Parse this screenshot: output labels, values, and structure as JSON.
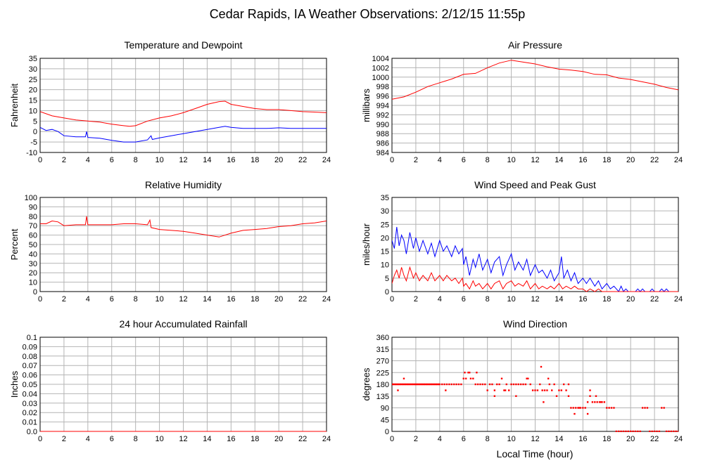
{
  "page": {
    "title": "Cedar Rapids, IA Weather Observations: 2/12/15 11:55p",
    "footer_xlabel": "Local Time (hour)"
  },
  "chart_data": [
    {
      "id": "temp",
      "type": "line",
      "title": "Temperature and Dewpoint",
      "xlabel": "",
      "ylabel": "Fahrenheit",
      "xlim": [
        0,
        24
      ],
      "ylim": [
        -10,
        35
      ],
      "xticks": [
        0,
        2,
        4,
        6,
        8,
        10,
        12,
        14,
        16,
        18,
        20,
        22,
        24
      ],
      "yticks": [
        -10,
        -5,
        0,
        5,
        10,
        15,
        20,
        25,
        30,
        35
      ],
      "grid": true,
      "series": [
        {
          "color": "#ff0000",
          "x": [
            0,
            1,
            2,
            3,
            4,
            5,
            6,
            7,
            7.5,
            8,
            9,
            10,
            11,
            12,
            13,
            14,
            15,
            15.5,
            16,
            17,
            18,
            19,
            20,
            21,
            22,
            23,
            24
          ],
          "values": [
            9.5,
            7.5,
            6.5,
            5.5,
            5,
            4.5,
            3.5,
            2.8,
            2.5,
            2.8,
            5,
            6.5,
            7.5,
            9,
            11,
            13,
            14.3,
            14.5,
            13,
            12,
            11,
            10.5,
            10.5,
            10,
            9.5,
            9.3,
            9
          ]
        },
        {
          "color": "#0000ff",
          "x": [
            0,
            0.5,
            1,
            1.5,
            2,
            3,
            3.8,
            3.9,
            4,
            5,
            6,
            7,
            8,
            9,
            9.3,
            9.4,
            10,
            11,
            12,
            13,
            14,
            15,
            15.5,
            16,
            17,
            18,
            19,
            20,
            21,
            22,
            23,
            24
          ],
          "values": [
            2,
            0.5,
            1,
            0,
            -2,
            -2.5,
            -2.5,
            0,
            -2.8,
            -3.2,
            -4.2,
            -5,
            -5,
            -4,
            -2,
            -3.8,
            -3,
            -2,
            -1,
            0,
            1,
            2,
            2.5,
            2,
            1.5,
            1.5,
            1.5,
            1.8,
            1.5,
            1.5,
            1.5,
            1.5
          ]
        }
      ]
    },
    {
      "id": "pressure",
      "type": "line",
      "title": "Air Pressure",
      "xlabel": "",
      "ylabel": "millibars",
      "xlim": [
        0,
        24
      ],
      "ylim": [
        984,
        1004
      ],
      "xticks": [
        0,
        2,
        4,
        6,
        8,
        10,
        12,
        14,
        16,
        18,
        20,
        22,
        24
      ],
      "yticks": [
        984,
        986,
        988,
        990,
        992,
        994,
        996,
        998,
        1000,
        1002,
        1004
      ],
      "grid": true,
      "series": [
        {
          "color": "#ff0000",
          "x": [
            0,
            1,
            2,
            3,
            4,
            5,
            6,
            7,
            8,
            9,
            10,
            11,
            12,
            13,
            14,
            15,
            16,
            17,
            18,
            19,
            20,
            21,
            22,
            23,
            24
          ],
          "values": [
            995.3,
            995.8,
            996.8,
            998,
            998.8,
            999.6,
            1000.6,
            1000.8,
            1002,
            1003,
            1003.6,
            1003.2,
            1002.8,
            1002.2,
            1001.7,
            1001.5,
            1001.2,
            1000.6,
            1000.5,
            999.8,
            999.5,
            999,
            998.5,
            997.8,
            997.3
          ]
        }
      ]
    },
    {
      "id": "humidity",
      "type": "line",
      "title": "Relative Humidity",
      "xlabel": "",
      "ylabel": "Percent",
      "xlim": [
        0,
        24
      ],
      "ylim": [
        0,
        100
      ],
      "xticks": [
        0,
        2,
        4,
        6,
        8,
        10,
        12,
        14,
        16,
        18,
        20,
        22,
        24
      ],
      "yticks": [
        0,
        10,
        20,
        30,
        40,
        50,
        60,
        70,
        80,
        90,
        100
      ],
      "grid": true,
      "series": [
        {
          "color": "#ff0000",
          "x": [
            0,
            0.5,
            1,
            1.5,
            2,
            3,
            3.8,
            3.9,
            4,
            5,
            6,
            7,
            8,
            9,
            9.2,
            9.3,
            10,
            11,
            12,
            13,
            14,
            15,
            16,
            17,
            18,
            19,
            20,
            21,
            22,
            23,
            24
          ],
          "values": [
            72,
            72,
            75,
            74,
            70,
            71,
            71,
            80,
            71,
            71,
            71,
            72,
            72,
            71,
            76,
            68,
            66,
            65,
            64,
            62,
            60,
            58,
            62,
            65,
            66,
            67,
            69,
            70,
            72,
            73,
            75
          ]
        }
      ]
    },
    {
      "id": "wind",
      "type": "line",
      "title": "Wind Speed and Peak Gust",
      "xlabel": "",
      "ylabel": "miles/hour",
      "xlim": [
        0,
        24
      ],
      "ylim": [
        0,
        35
      ],
      "xticks": [
        0,
        2,
        4,
        6,
        8,
        10,
        12,
        14,
        16,
        18,
        20,
        22,
        24
      ],
      "yticks": [
        0,
        5,
        10,
        15,
        20,
        25,
        30,
        35
      ],
      "grid": true,
      "series": [
        {
          "color": "#0000ff",
          "x": [
            0,
            0.2,
            0.4,
            0.6,
            0.8,
            1,
            1.2,
            1.5,
            1.8,
            2,
            2.3,
            2.6,
            3,
            3.3,
            3.6,
            4,
            4.3,
            4.6,
            5,
            5.3,
            5.6,
            5.9,
            6,
            6.2,
            6.5,
            6.8,
            7,
            7.3,
            7.6,
            8,
            8.3,
            8.6,
            9,
            9.3,
            9.6,
            10,
            10.3,
            10.6,
            11,
            11.3,
            11.6,
            12,
            12.3,
            12.6,
            13,
            13.3,
            13.6,
            14,
            14.2,
            14.4,
            14.7,
            15,
            15.3,
            15.6,
            16,
            16.3,
            16.6,
            17,
            17.3,
            17.6,
            18,
            18.3,
            18.6,
            19,
            19.2,
            19.4,
            19.6,
            19.8,
            20,
            20.2,
            20.4,
            20.6,
            20.8,
            21,
            21.2,
            21.4,
            21.6,
            21.8,
            22,
            22.2,
            22.4,
            22.6,
            22.8,
            23,
            23.2,
            23.5,
            24
          ],
          "values": [
            19,
            16,
            24,
            17,
            21,
            19,
            14,
            22,
            16,
            20,
            15,
            19,
            14,
            18,
            13,
            19,
            15,
            17,
            13,
            17,
            14,
            16,
            10,
            13,
            6,
            12,
            9,
            14,
            8,
            12,
            7,
            11,
            13,
            6,
            10,
            14,
            8,
            11,
            8,
            12,
            6,
            10,
            7,
            8,
            5,
            8,
            4,
            7,
            13,
            5,
            8,
            4,
            7,
            3,
            5,
            3,
            5,
            2,
            4,
            1,
            3,
            1,
            2,
            0,
            2,
            0,
            1,
            0,
            0,
            0,
            0,
            1,
            0,
            1,
            0,
            0,
            0,
            1,
            0,
            0,
            0,
            1,
            0,
            1,
            0,
            0,
            0
          ]
        },
        {
          "color": "#ff0000",
          "x": [
            0,
            0.2,
            0.4,
            0.6,
            0.8,
            1,
            1.2,
            1.5,
            1.8,
            2,
            2.3,
            2.6,
            3,
            3.3,
            3.6,
            4,
            4.3,
            4.6,
            5,
            5.3,
            5.6,
            5.9,
            6,
            6.2,
            6.5,
            6.8,
            7,
            7.3,
            7.6,
            8,
            8.3,
            8.6,
            9,
            9.3,
            9.6,
            10,
            10.3,
            10.6,
            11,
            11.3,
            11.6,
            12,
            12.3,
            12.6,
            13,
            13.3,
            13.6,
            14,
            14.3,
            14.6,
            15,
            15.3,
            15.6,
            16,
            16.3,
            16.6,
            17,
            17.3,
            17.6,
            18,
            24
          ],
          "values": [
            3,
            6,
            8,
            5,
            9,
            6,
            4,
            9,
            5,
            7,
            4,
            6,
            4,
            7,
            4,
            6,
            4,
            6,
            4,
            5,
            3,
            5,
            2,
            3,
            1,
            4,
            2,
            3,
            1,
            3,
            1,
            3,
            4,
            1,
            3,
            4,
            2,
            3,
            2,
            4,
            1,
            3,
            1,
            2,
            1,
            2,
            1,
            3,
            1,
            2,
            1,
            2,
            1,
            1,
            0,
            1,
            0,
            1,
            0,
            0,
            0
          ]
        }
      ]
    },
    {
      "id": "rain",
      "type": "line",
      "title": "24 hour Accumulated Rainfall",
      "xlabel": "",
      "ylabel": "Inches",
      "xlim": [
        0,
        24
      ],
      "ylim": [
        0,
        0.1
      ],
      "xticks": [
        0,
        2,
        4,
        6,
        8,
        10,
        12,
        14,
        16,
        18,
        20,
        22,
        24
      ],
      "yticks": [
        0,
        0.01,
        0.02,
        0.03,
        0.04,
        0.05,
        0.06,
        0.07,
        0.08,
        0.09,
        0.1
      ],
      "ytick_labels": [
        "0.0",
        "0.01",
        "0.02",
        "0.03",
        "0.04",
        "0.05",
        "0.06",
        "0.07",
        "0.08",
        "0.09",
        "0.1"
      ],
      "grid": true,
      "series": [
        {
          "color": "#ff0000",
          "x": [
            0,
            24
          ],
          "values": [
            0,
            0
          ]
        }
      ]
    },
    {
      "id": "direction",
      "type": "scatter",
      "title": "Wind Direction",
      "xlabel": "",
      "ylabel": "degrees",
      "xlim": [
        0,
        24
      ],
      "ylim": [
        0,
        360
      ],
      "xticks": [
        0,
        2,
        4,
        6,
        8,
        10,
        12,
        14,
        16,
        18,
        20,
        22,
        24
      ],
      "yticks": [
        0,
        45,
        90,
        135,
        180,
        225,
        270,
        315,
        360
      ],
      "grid": true,
      "series": [
        {
          "color": "#ff0000",
          "x": [
            0,
            0.1,
            0.2,
            0.3,
            0.4,
            0.5,
            0.6,
            0.7,
            0.8,
            0.9,
            1,
            1.1,
            1.2,
            1.3,
            1.4,
            1.5,
            1.6,
            1.7,
            1.8,
            1.9,
            2,
            2.1,
            2.2,
            2.3,
            2.4,
            2.5,
            2.6,
            2.7,
            2.8,
            2.9,
            3,
            3.1,
            3.2,
            3.3,
            3.4,
            3.5,
            3.6,
            3.7,
            3.8,
            3.9,
            4,
            4.2,
            4.4,
            4.6,
            4.8,
            5,
            5.2,
            5.4,
            5.6,
            5.8,
            6,
            6.2,
            6.4,
            6.6,
            6.8,
            7,
            7.2,
            7.4,
            7.6,
            7.8,
            8,
            8.2,
            8.4,
            8.6,
            8.8,
            9,
            9.2,
            9.4,
            9.6,
            9.8,
            10,
            10.2,
            10.4,
            10.6,
            10.8,
            11,
            11.2,
            11.4,
            11.6,
            11.8,
            12,
            12.2,
            12.4,
            12.6,
            12.8,
            13,
            13.2,
            13.4,
            13.6,
            13.8,
            14,
            14.2,
            14.4,
            14.6,
            14.8,
            15,
            15.2,
            15.4,
            15.6,
            15.8,
            16,
            16.2,
            16.4,
            16.6,
            16.8,
            17,
            17.2,
            17.4,
            17.6,
            17.8,
            18,
            18.2,
            18.4,
            18.6,
            18.8,
            19,
            19.2,
            19.4,
            19.6,
            19.8,
            20,
            20.2,
            20.4,
            20.6,
            20.8,
            21,
            21.2,
            21.4,
            21.6,
            21.8,
            22,
            22.2,
            22.4,
            22.6,
            22.8,
            23,
            23.2,
            23.4,
            23.6,
            23.8,
            24,
            0.5,
            1.0,
            4.5,
            6.1,
            6.5,
            7.1,
            8.6,
            9.5,
            10.4,
            11.3,
            12.5,
            12.7,
            13.1,
            14.8,
            15.3,
            15.7,
            16.4,
            16.6,
            17.1,
            17.5
          ],
          "values": [
            180,
            180,
            180,
            180,
            180,
            180,
            180,
            180,
            180,
            180,
            180,
            180,
            180,
            180,
            180,
            180,
            180,
            180,
            180,
            180,
            180,
            180,
            180,
            180,
            180,
            180,
            180,
            180,
            180,
            180,
            180,
            180,
            180,
            180,
            180,
            180,
            180,
            180,
            180,
            180,
            180,
            180,
            180,
            180,
            180,
            180,
            180,
            180,
            180,
            180,
            202,
            202,
            225,
            202,
            202,
            180,
            180,
            180,
            180,
            180,
            157,
            180,
            180,
            157,
            180,
            180,
            202,
            157,
            180,
            157,
            180,
            180,
            180,
            180,
            180,
            180,
            180,
            202,
            180,
            157,
            157,
            157,
            180,
            157,
            157,
            157,
            180,
            157,
            180,
            135,
            157,
            157,
            180,
            157,
            135,
            90,
            90,
            90,
            90,
            90,
            90,
            90,
            112,
            135,
            112,
            112,
            112,
            112,
            112,
            112,
            90,
            90,
            90,
            90,
            0,
            0,
            0,
            0,
            0,
            0,
            0,
            0,
            0,
            0,
            0,
            90,
            90,
            90,
            0,
            0,
            0,
            0,
            0,
            90,
            90,
            0,
            0,
            0,
            0,
            0,
            0,
            157,
            202,
            157,
            225,
            225,
            225,
            135,
            157,
            135,
            202,
            247,
            112,
            202,
            180,
            67,
            90,
            67,
            157,
            135,
            112
          ]
        }
      ]
    }
  ]
}
